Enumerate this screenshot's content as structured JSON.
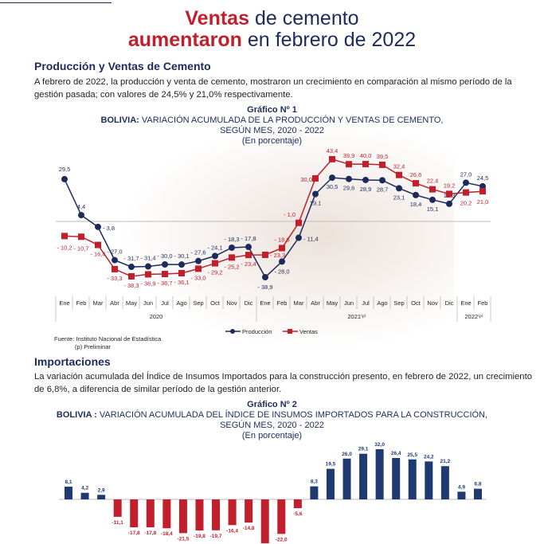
{
  "headline": {
    "line1_bold": "Ventas",
    "line1_rest": " de cemento",
    "line2_bold": "aumentaron",
    "line2_rest": " en febrero de 2022"
  },
  "section1": {
    "heading": "Producción y Ventas de Cemento",
    "paragraph": "A febrero de 2022, la producción y venta de cemento, mostraron un crecimiento en comparación al mismo período de la gestión pasada; con valores de 24,5% y 21,0% respectivamente."
  },
  "section2": {
    "heading": "Importaciones",
    "paragraph": "La variación acumulada del Índice de Insumos Importados para la construcción presento, en febrero de 2022, un crecimiento de 6,8%, a diferencia de similar período de la gestión anterior."
  },
  "colors": {
    "navy": "#1d2b5c",
    "red": "#c01f2b",
    "bar_pos": "#1e3a70",
    "bar_neg": "#c01f2b"
  },
  "chart_data": [
    {
      "type": "line",
      "label": "Gráfico Nº 1",
      "title_bold": "BOLIVIA:",
      "title": " VARIACIÓN ACUMULADA DE LA PRODUCCIÓN Y VENTAS DE CEMENTO,",
      "subtitle": "SEGÚN MES, 2020 - 2022",
      "units": "(En porcentaje)",
      "categories": [
        "Ene",
        "Feb",
        "Mar",
        "Abr",
        "May",
        "Jun",
        "Jul",
        "Ago",
        "Sep",
        "Oct",
        "Nov",
        "Dic",
        "Ene",
        "Feb",
        "Mar",
        "Abr",
        "May",
        "Jun",
        "Jul",
        "Ago",
        "Sep",
        "Oct",
        "Nov",
        "Dic",
        "Ene",
        "Feb"
      ],
      "years": [
        {
          "label": "2020",
          "span": 12
        },
        {
          "label": "2021⁽ᵖ⁾",
          "span": 12
        },
        {
          "label": "2022⁽ᵖ⁾",
          "span": 2
        }
      ],
      "series": [
        {
          "name": "Producción",
          "values": [
            29.5,
            4.4,
            -3.8,
            -27.0,
            -31.7,
            -31.4,
            -30.0,
            -30.1,
            -27.6,
            -24.1,
            -18.3,
            -17.8,
            -38.9,
            -28.0,
            -11.4,
            19.1,
            30.5,
            29.6,
            28.9,
            28.7,
            23.1,
            18.4,
            15.1,
            12.3,
            27.0,
            24.5
          ],
          "labels": [
            "29,5",
            "4,4",
            "- 3,8",
            "- 27,0",
            "- 31,7",
            "- 31,4",
            "- 30,0",
            "- 30,1",
            "- 27,6",
            "- 24,1",
            "- 18,3",
            "- 17,8",
            "- 38,9",
            "- 28,0",
            "- 11,4",
            "19,1",
            "30,5",
            "29,6",
            "28,9",
            "28,7",
            "23,1",
            "18,4",
            "15,1",
            "12,3",
            "27,0",
            "24,5"
          ]
        },
        {
          "name": "Ventas",
          "values": [
            -10.2,
            -10.7,
            -16.4,
            -33.3,
            -38.3,
            -36.9,
            -36.7,
            -36.1,
            -33.0,
            -29.2,
            -25.2,
            -23.4,
            -23.3,
            -18.6,
            -1.0,
            30.0,
            43.4,
            39.9,
            40.0,
            39.5,
            32.4,
            26.6,
            22.4,
            19.2,
            20.2,
            21.0
          ],
          "labels": [
            "- 10,2",
            "- 10,7",
            "- 16,4",
            "- 33,3",
            "- 38,3",
            "- 36,9",
            "- 36,7",
            "- 36,1",
            "- 33,0",
            "- 29,2",
            "- 25,2",
            "- 23,4",
            "- 23,3",
            "- 18,6",
            "- 1,0",
            "30,0",
            "43,4",
            "39,9",
            "40,0",
            "39,5",
            "32,4",
            "26,6",
            "22,4",
            "19,2",
            "20,2",
            "21,0"
          ]
        }
      ],
      "legend": "bottom-center",
      "source": "Fuente: Instituto Nacional de Estadística",
      "note": "(p) Preliminar"
    },
    {
      "type": "bar",
      "label": "Gráfico Nº 2",
      "title_bold": "BOLIVIA :",
      "title": " VARIACIÓN ACUMULADA DEL ÍNDICE DE INSUMOS IMPORTADOS PARA LA CONSTRUCCIÓN,",
      "subtitle": "SEGÚN MES, 2020 - 2022",
      "units": "(En porcentaje)",
      "values": [
        8.1,
        4.2,
        2.9,
        -11.1,
        -17.8,
        -17.8,
        -18.4,
        -21.5,
        -19.8,
        -19.7,
        -16.4,
        -14.8,
        -28.0,
        -22.0,
        -5.6,
        8.3,
        19.5,
        26.0,
        29.1,
        32.0,
        26.4,
        25.5,
        24.2,
        21.2,
        4.9,
        6.8
      ],
      "labels": [
        "8,1",
        "4,2",
        "2,9",
        "-11,1",
        "-17,8",
        "-17,8",
        "-18,4",
        "-21,5",
        "-19,8",
        "-19,7",
        "-16,4",
        "-14,8",
        "",
        "-22,0",
        "-5,6",
        "8,3",
        "19,5",
        "26,0",
        "29,1",
        "32,0",
        "26,4",
        "25,5",
        "24,2",
        "21,2",
        "4,9",
        "6,8"
      ]
    }
  ]
}
